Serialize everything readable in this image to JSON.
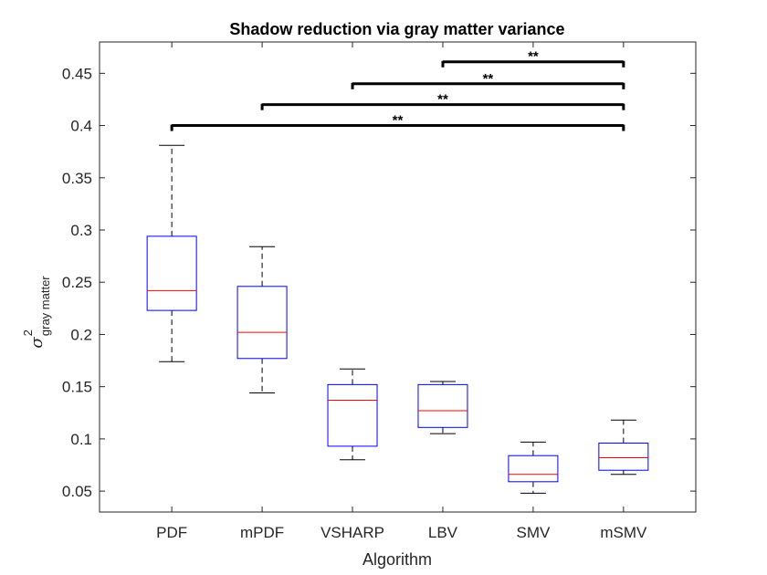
{
  "chart_data": {
    "type": "box",
    "title": "Shadow reduction via gray matter variance",
    "xlabel": "Algorithm",
    "ylabel": {
      "base": "σ",
      "superscript": "2",
      "subscript": "gray matter"
    },
    "ylim": [
      0.03,
      0.48
    ],
    "yticks": [
      0.05,
      0.1,
      0.15,
      0.2,
      0.25,
      0.3,
      0.35,
      0.4,
      0.45
    ],
    "ytick_labels": [
      "0.05",
      "0.1",
      "0.15",
      "0.2",
      "0.25",
      "0.3",
      "0.35",
      "0.4",
      "0.45"
    ],
    "categories": [
      "PDF",
      "mPDF",
      "VSHARP",
      "LBV",
      "SMV",
      "mSMV"
    ],
    "boxes": [
      {
        "category": "PDF",
        "whisker_low": 0.174,
        "q1": 0.223,
        "median": 0.242,
        "q3": 0.294,
        "whisker_high": 0.381
      },
      {
        "category": "mPDF",
        "whisker_low": 0.144,
        "q1": 0.177,
        "median": 0.202,
        "q3": 0.246,
        "whisker_high": 0.284
      },
      {
        "category": "VSHARP",
        "whisker_low": 0.08,
        "q1": 0.093,
        "median": 0.137,
        "q3": 0.152,
        "whisker_high": 0.167
      },
      {
        "category": "LBV",
        "whisker_low": 0.105,
        "q1": 0.111,
        "median": 0.127,
        "q3": 0.152,
        "whisker_high": 0.155
      },
      {
        "category": "SMV",
        "whisker_low": 0.048,
        "q1": 0.059,
        "median": 0.066,
        "q3": 0.084,
        "whisker_high": 0.097
      },
      {
        "category": "mSMV",
        "whisker_low": 0.066,
        "q1": 0.07,
        "median": 0.082,
        "q3": 0.096,
        "whisker_high": 0.118
      }
    ],
    "significance": [
      {
        "from": "PDF",
        "to": "mSMV",
        "y": 0.4,
        "label": "**"
      },
      {
        "from": "mPDF",
        "to": "mSMV",
        "y": 0.42,
        "label": "**"
      },
      {
        "from": "VSHARP",
        "to": "mSMV",
        "y": 0.44,
        "label": "**"
      },
      {
        "from": "LBV",
        "to": "mSMV",
        "y": 0.461,
        "label": "**"
      }
    ],
    "grid": false,
    "colors": {
      "box": "#0000ff",
      "median": "#ff0000",
      "whisker": "#000000",
      "axis": "#262626",
      "bracket": "#000000"
    }
  }
}
